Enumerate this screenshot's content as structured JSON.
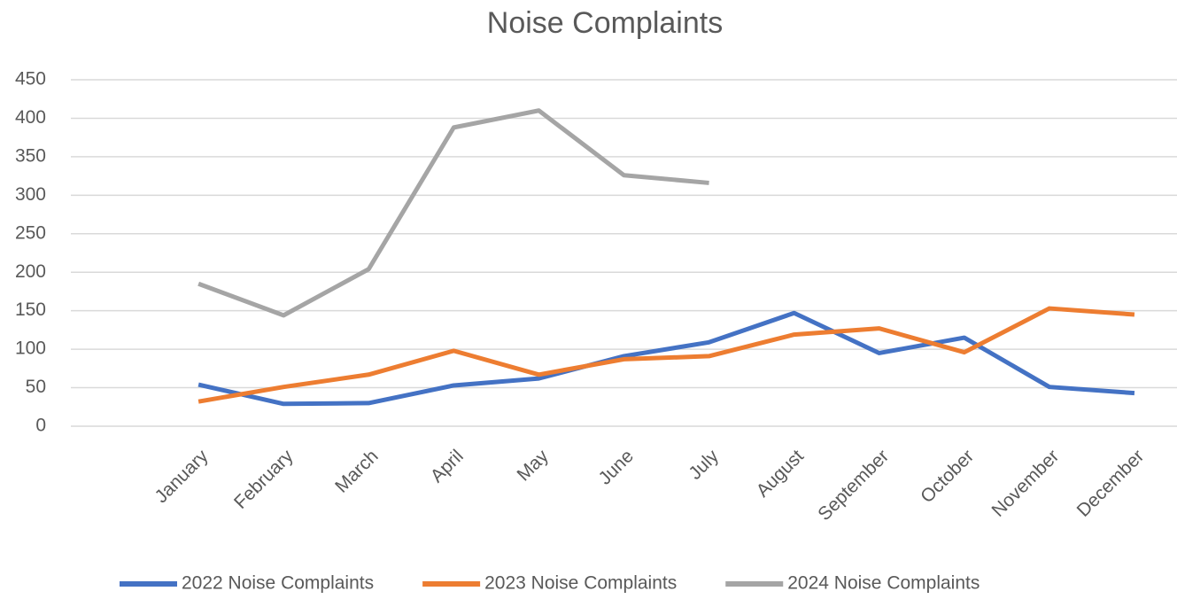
{
  "chart_data": {
    "type": "line",
    "title": "Noise Complaints",
    "categories": [
      null,
      "January",
      "February",
      "March",
      "April",
      "May",
      "June",
      "July",
      "August",
      "September",
      "October",
      "November",
      "December"
    ],
    "series": [
      {
        "name": "2022 Noise Complaints",
        "color": "#4472c4",
        "values": [
          null,
          54,
          29,
          30,
          53,
          62,
          91,
          109,
          147,
          95,
          115,
          51,
          43
        ]
      },
      {
        "name": "2023 Noise Complaints",
        "color": "#ed7d31",
        "values": [
          null,
          32,
          51,
          67,
          98,
          67,
          87,
          91,
          119,
          127,
          96,
          153,
          145
        ]
      },
      {
        "name": "2024 Noise Complaints",
        "color": "#a5a5a5",
        "values": [
          null,
          185,
          144,
          204,
          388,
          410,
          326,
          316,
          null,
          null,
          null,
          null,
          null
        ]
      }
    ],
    "ylim": [
      0,
      450
    ],
    "yticks": [
      0,
      50,
      100,
      150,
      200,
      250,
      300,
      350,
      400,
      450
    ],
    "grid": true,
    "legend": "bottom"
  }
}
